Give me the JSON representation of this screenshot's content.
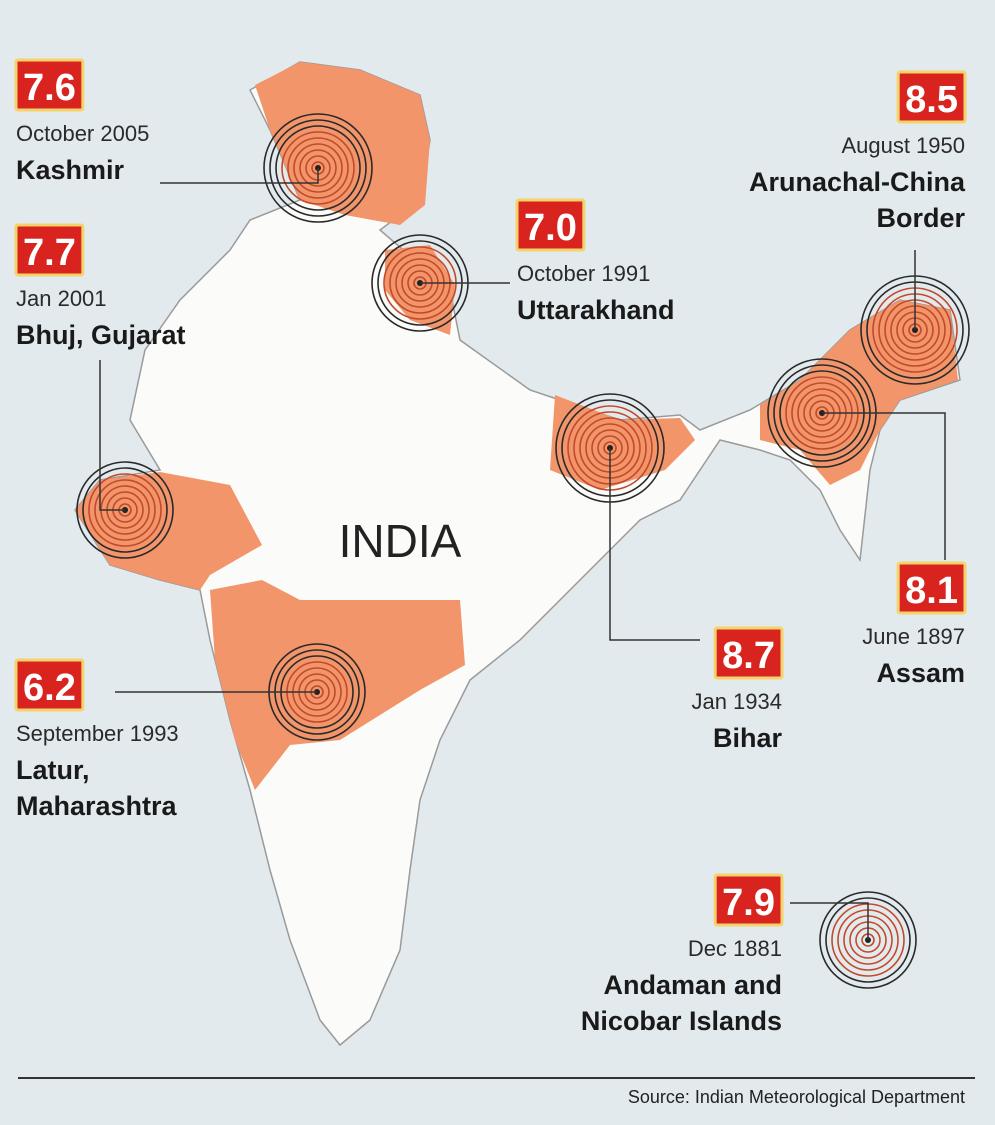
{
  "map_label": "INDIA",
  "earthquakes": [
    {
      "magnitude": "7.6",
      "date": "October 2005",
      "place": [
        "Kashmir"
      ]
    },
    {
      "magnitude": "7.7",
      "date": "Jan 2001",
      "place": [
        "Bhuj, Gujarat"
      ]
    },
    {
      "magnitude": "7.0",
      "date": "October 1991",
      "place": [
        "Uttarakhand"
      ]
    },
    {
      "magnitude": "8.5",
      "date": "August 1950",
      "place": [
        "Arunachal-China",
        "Border"
      ]
    },
    {
      "magnitude": "8.1",
      "date": "June 1897",
      "place": [
        "Assam"
      ]
    },
    {
      "magnitude": "8.7",
      "date": "Jan 1934",
      "place": [
        "Bihar"
      ]
    },
    {
      "magnitude": "6.2",
      "date": "September 1993",
      "place": [
        "Latur,",
        "Maharashtra"
      ]
    },
    {
      "magnitude": "7.9",
      "date": "Dec 1881",
      "place": [
        "Andaman and",
        "Nicobar Islands"
      ]
    }
  ],
  "source": "Source: Indian Meteorological Department"
}
